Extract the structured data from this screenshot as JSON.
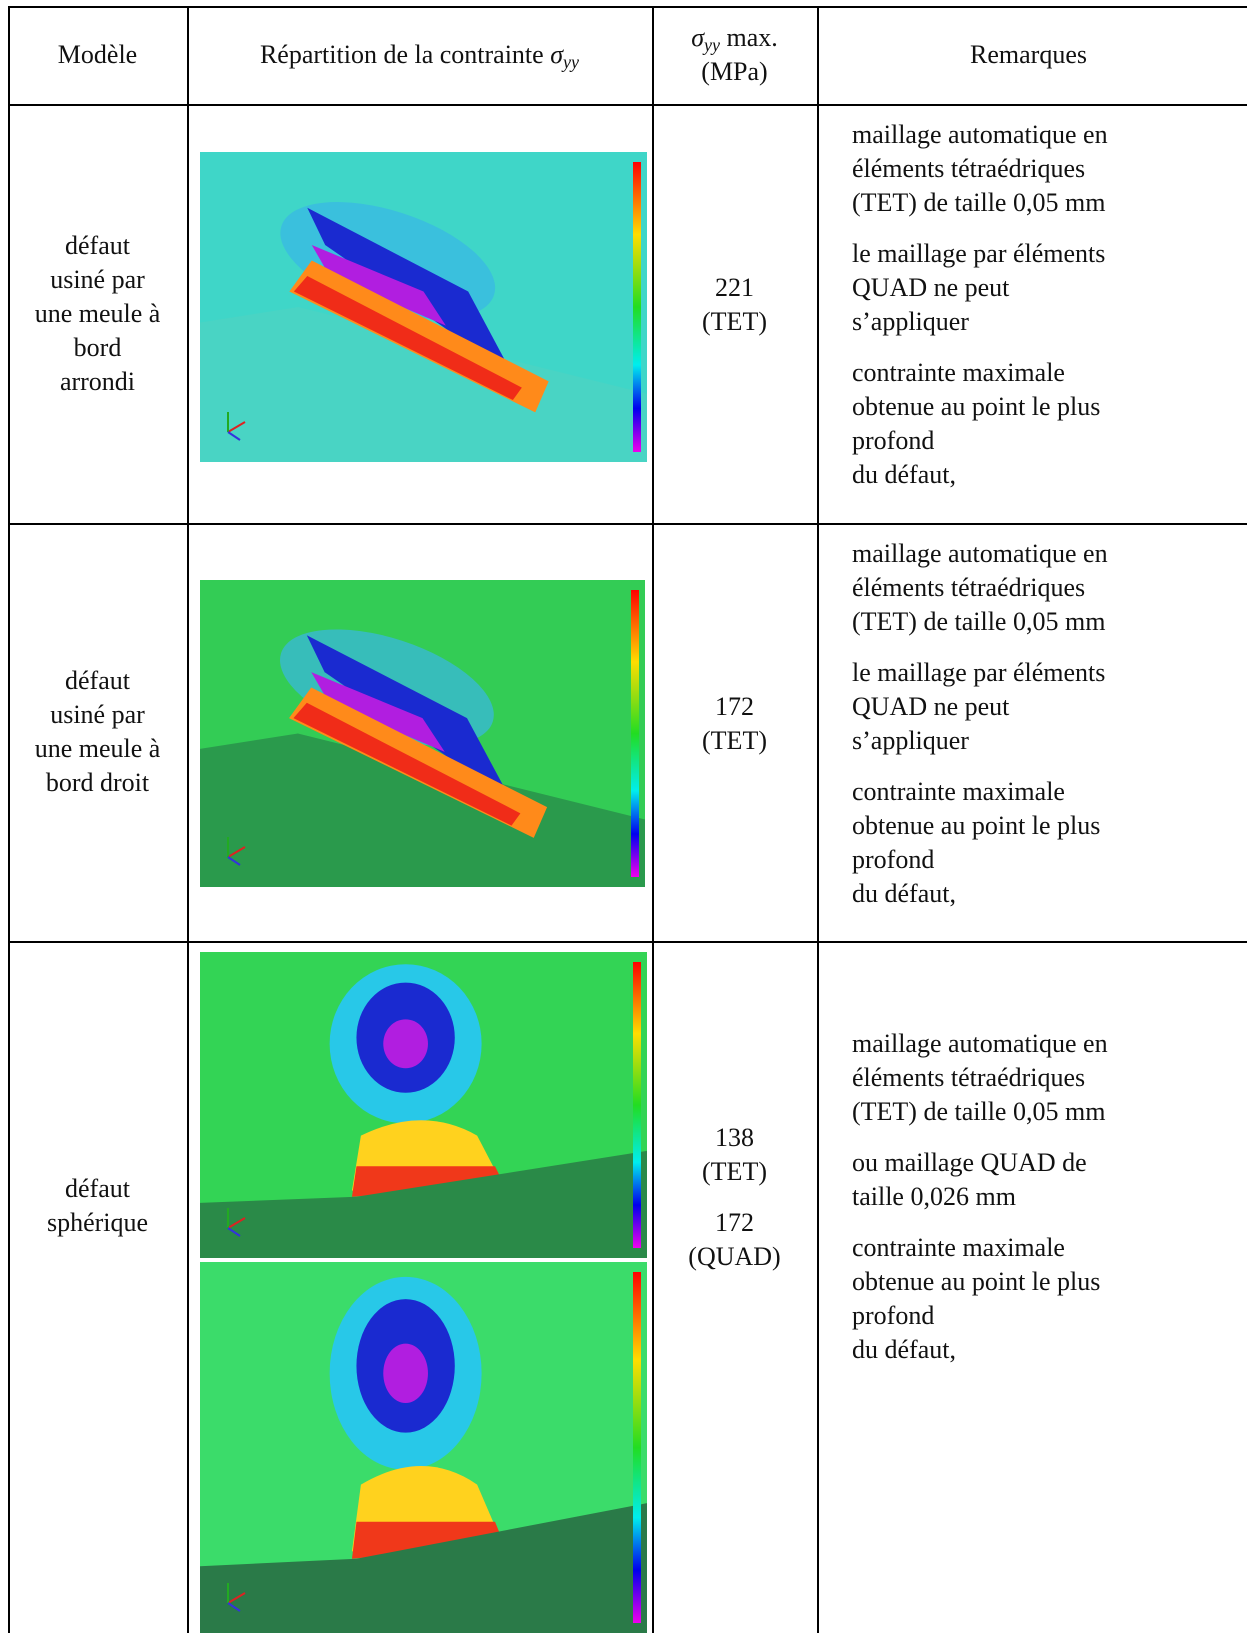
{
  "header": {
    "model": "Modèle",
    "distribution": {
      "text": "Répartition de la contrainte",
      "symbol": "σ",
      "subscript": "yy"
    },
    "max": {
      "symbol": "σ",
      "subscript": "yy",
      "text": "max.",
      "unit": "(MPa)"
    },
    "remarks": "Remarques"
  },
  "rows": [
    {
      "model": [
        "défaut",
        "usiné par",
        "une meule à",
        "bord",
        "arrondi"
      ],
      "values": [
        [
          "221",
          "(TET)"
        ]
      ],
      "remarks": [
        [
          "maillage automatique en",
          "éléments tétraédriques",
          "(TET) de taille 0,05 mm"
        ],
        [
          "le maillage par éléments",
          "QUAD ne peut",
          "s’appliquer"
        ],
        [
          "contrainte maximale",
          "obtenue au point le plus",
          "profond",
          "du défaut,"
        ]
      ]
    },
    {
      "model": [
        "défaut",
        "usiné par",
        "une meule à",
        "bord droit"
      ],
      "values": [
        [
          "172",
          "(TET)"
        ]
      ],
      "remarks": [
        [
          "maillage automatique en",
          "éléments tétraédriques",
          "(TET) de taille 0,05 mm"
        ],
        [
          "le maillage par éléments",
          "QUAD ne peut",
          "s’appliquer"
        ],
        [
          "contrainte maximale",
          "obtenue au point le plus",
          "profond",
          "du défaut,"
        ]
      ]
    },
    {
      "model": [
        "défaut",
        "sphérique"
      ],
      "values": [
        [
          "138",
          "(TET)"
        ],
        [
          "172",
          "(QUAD)"
        ]
      ],
      "remarks": [
        [
          "maillage automatique en",
          "éléments tétraédriques",
          "(TET) de taille 0,05 mm"
        ],
        [
          "ou maillage QUAD de",
          "taille 0,026 mm"
        ],
        [
          "contrainte maximale",
          "obtenue au point le plus",
          "profond",
          "du défaut,"
        ]
      ]
    }
  ]
}
